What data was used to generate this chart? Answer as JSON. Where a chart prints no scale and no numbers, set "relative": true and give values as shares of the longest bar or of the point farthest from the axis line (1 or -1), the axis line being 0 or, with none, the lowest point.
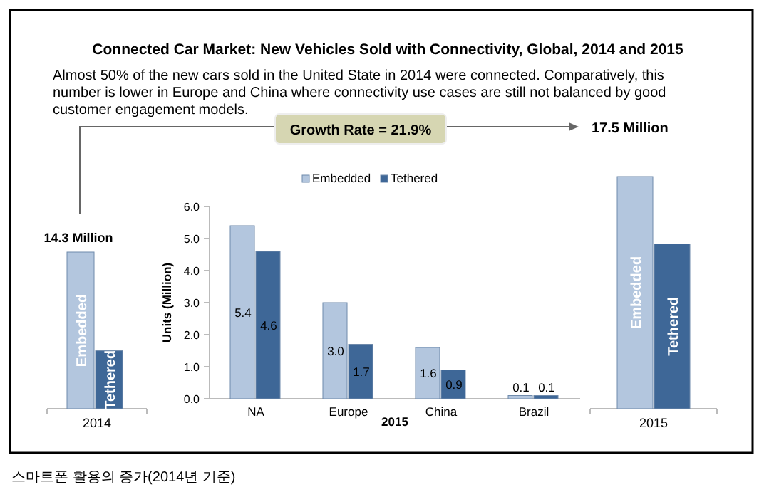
{
  "chart_data": [
    {
      "type": "bar",
      "title": "Connected Car Market: New Vehicles Sold with Connectivity, Global, 2014 and 2015",
      "subtitle": "Almost 50% of the new cars sold in the United State in 2014 were connected. Comparatively, this number is lower in Europe and China where connectivity use cases are still not balanced by good customer engagement models.",
      "xlabel": "2014",
      "categories": [
        "Embedded",
        "Tethered"
      ],
      "values": [
        1,
        0.37
      ],
      "colors": [
        "#b3c6de",
        "#3e6797"
      ],
      "relative": true,
      "annotations": [
        "14.3 Million",
        "Growth Rate = 21.9%",
        "스마트폰 활용의 증가(2014년 기준)"
      ]
    },
    {
      "type": "bar",
      "xlabel": "2015",
      "ylabel": "Units (Million)",
      "categories": [
        "NA",
        "Europe",
        "China",
        "Brazil"
      ],
      "ylim": [
        0,
        6
      ],
      "yticks": [
        {
          "value": 0,
          "label": "0.0"
        },
        {
          "value": 1,
          "label": "1.0"
        },
        {
          "value": 2,
          "label": "2.0"
        },
        {
          "value": 3,
          "label": "3.0"
        },
        {
          "value": 4,
          "label": "4.0"
        },
        {
          "value": 5,
          "label": "5.0"
        },
        {
          "value": 6,
          "label": "6.0"
        }
      ],
      "legend": "top",
      "series": [
        {
          "name": "Embedded",
          "color": "#b3c6de",
          "values": [
            5.4,
            3.0,
            1.6,
            0.1
          ],
          "value_labels": [
            "5.4",
            "3.0",
            "1.6",
            "0.1"
          ]
        },
        {
          "name": "Tethered",
          "color": "#3e6797",
          "values": [
            4.6,
            1.7,
            0.9,
            0.1
          ],
          "value_labels": [
            "4.6",
            "1.7",
            "0.9",
            "0.1"
          ]
        }
      ]
    },
    {
      "type": "bar",
      "xlabel": "2015",
      "categories": [
        "Embedded",
        "Tethered"
      ],
      "values": [
        1,
        0.71
      ],
      "colors": [
        "#b3c6de",
        "#3e6797"
      ],
      "relative": true,
      "annotations": [
        "17.5 Million"
      ]
    }
  ]
}
